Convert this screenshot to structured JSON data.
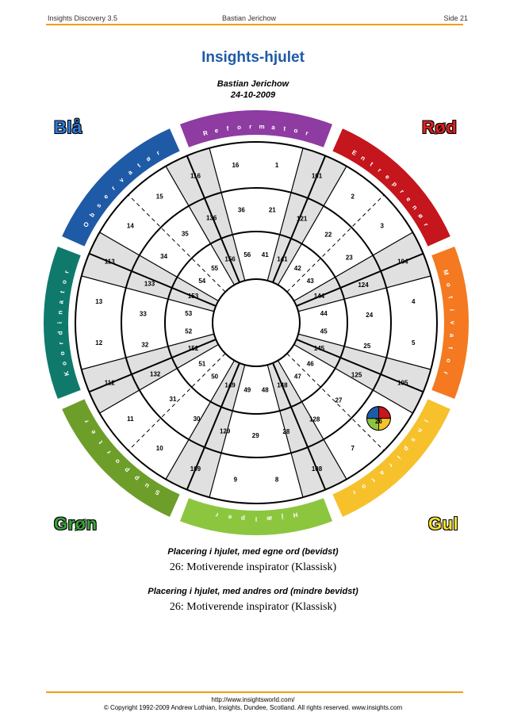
{
  "header": {
    "left": "Insights Discovery 3.5",
    "center": "Bastian Jerichow",
    "right": "Side 21"
  },
  "title": "Insights-hjulet",
  "subtitle": {
    "name": "Bastian Jerichow",
    "date": "24-10-2009"
  },
  "corners": {
    "blue": "Blå",
    "red": "Rød",
    "green": "Grøn",
    "yellow": "Gul"
  },
  "colors": {
    "purple": "#8e3ba2",
    "red": "#c4161c",
    "orange": "#f47920",
    "yellow": "#f7c12c",
    "green": "#8cc63f",
    "olivegreen": "#6e9e2a",
    "teal": "#0f7a6c",
    "blue": "#1f5aa6",
    "grey": "#e0e0e0",
    "accent": "#f39c12"
  },
  "ring_labels": [
    {
      "text": "Reformator",
      "color": "#8e3ba2"
    },
    {
      "text": "Entreprenør",
      "color": "#c4161c"
    },
    {
      "text": "Motivator",
      "color": "#f47920"
    },
    {
      "text": "Inspirator",
      "color": "#f7c12c"
    },
    {
      "text": "Hjælper",
      "color": "#8cc63f"
    },
    {
      "text": "Supporter",
      "color": "#6e9e2a"
    },
    {
      "text": "Koordinator",
      "color": "#0f7a6c"
    },
    {
      "text": "Observatør",
      "color": "#1f5aa6"
    }
  ],
  "numbers": {
    "outer": [
      "16",
      "1",
      "101",
      "2",
      "3",
      "104",
      "4",
      "5",
      "105",
      "6",
      "7",
      "108",
      "8",
      "9",
      "109",
      "10",
      "11",
      "112",
      "12",
      "13",
      "113",
      "14",
      "15",
      "116"
    ],
    "middle": [
      "36",
      "21",
      "121",
      "22",
      "23",
      "124",
      "24",
      "25",
      "125",
      "27",
      "128",
      "28",
      "29",
      "129",
      "30",
      "31",
      "132",
      "32",
      "33",
      "133",
      "34",
      "35",
      "136"
    ],
    "inner": [
      "56",
      "41",
      "141",
      "42",
      "43",
      "144",
      "44",
      "45",
      "145",
      "46",
      "47",
      "148",
      "48",
      "49",
      "149",
      "50",
      "51",
      "152",
      "52",
      "53",
      "153",
      "54",
      "55",
      "156"
    ]
  },
  "marker": {
    "number": "26",
    "colors": [
      "#c4161c",
      "#f7c12c",
      "#8cc63f",
      "#1f5aa6"
    ]
  },
  "placement": {
    "own_heading": "Placering i hjulet, med egne ord (bevidst)",
    "own_value": "26: Motiverende inspirator (Klassisk)",
    "others_heading": "Placering i hjulet, med andres ord (mindre bevidst)",
    "others_value": "26: Motiverende inspirator (Klassisk)"
  },
  "footer": {
    "url": "http://www.insightsworld.com/",
    "copyright": "© Copyright 1992-2009 Andrew Lothian, Insights, Dundee, Scotland. All rights reserved. www.insights.com"
  }
}
